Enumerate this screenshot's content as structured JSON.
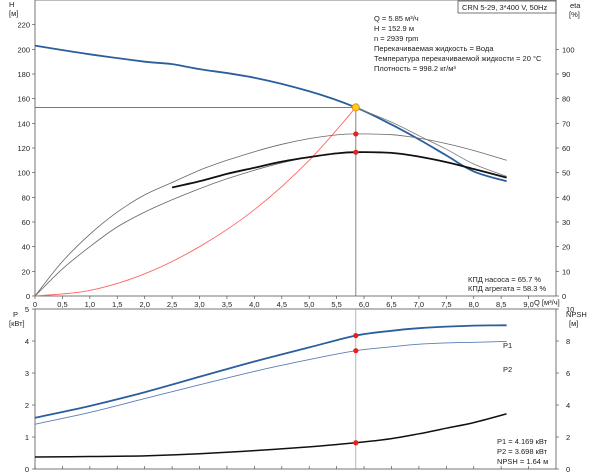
{
  "chart_data": [
    {
      "type": "line",
      "model_label": "CRN 5-29, 3*400 V, 50Hz",
      "xlabel": "Q [м³/ч]",
      "ylabel_left": [
        "H",
        "[м]"
      ],
      "ylabel_right": [
        "eta",
        "[%]"
      ],
      "xlim": [
        0,
        9.5
      ],
      "ylim_left": [
        0,
        240
      ],
      "ylim_right": [
        0,
        120
      ],
      "x_ticks": [
        "0",
        "0,5",
        "1,0",
        "1,5",
        "2,0",
        "2,5",
        "3,0",
        "3,5",
        "4,0",
        "4,5",
        "5,0",
        "5,5",
        "6,0",
        "6,5",
        "7,0",
        "7,5",
        "8,0",
        "8,5",
        "9,0"
      ],
      "y_ticks_left": [
        "0",
        "20",
        "40",
        "60",
        "80",
        "100",
        "120",
        "140",
        "160",
        "180",
        "200",
        "220"
      ],
      "y_ticks_right": [
        "0",
        "10",
        "20",
        "30",
        "40",
        "50",
        "60",
        "70",
        "80",
        "90",
        "100"
      ],
      "info_lines": [
        "Q = 5.85 м³/ч",
        "H = 152.9 м",
        "n = 2939 rpm",
        "Перекачиваемая жидкость = Вода",
        "Температура перекачиваемой жидкости = 20 °C",
        "Плотность = 998.2 кг/м³"
      ],
      "efficiency_notes": [
        "КПД насоса = 65.7 %",
        "КПД агрегата = 58.3 %"
      ],
      "duty_point": {
        "q": 5.85,
        "h": 152.9,
        "eta_pump": 65.7,
        "eta_unit": 58.3
      },
      "series": [
        {
          "role": "head",
          "color": "#2a5e9e",
          "x": [
            0,
            1,
            2,
            2.5,
            3,
            4,
            5,
            5.85,
            6.5,
            7,
            7.5,
            8,
            8.6
          ],
          "y": [
            203,
            196,
            190,
            188,
            184,
            177,
            166,
            152.9,
            139,
            127,
            114,
            101,
            93
          ]
        },
        {
          "role": "head-extension",
          "color": "#777777",
          "x": [
            5.85,
            6.5,
            7,
            7.5,
            8,
            8.6
          ],
          "y": [
            152.9,
            141,
            130,
            119,
            107,
            97
          ]
        },
        {
          "role": "system-curve",
          "color": "#ff6666",
          "x": [
            0,
            1,
            2,
            3,
            4,
            5,
            5.85
          ],
          "y": [
            0,
            4.5,
            18,
            40,
            70,
            110,
            152.9
          ]
        },
        {
          "role": "eta-pump",
          "color": "#666666",
          "x": [
            0,
            0.5,
            1,
            1.5,
            2,
            2.5,
            3,
            3.5,
            4,
            4.5,
            5,
            5.5,
            5.85,
            6.5,
            7,
            7.5,
            8,
            8.6
          ],
          "y": [
            0,
            14,
            25,
            34,
            41,
            46,
            51,
            55,
            58.5,
            61.5,
            63.8,
            65.3,
            65.7,
            65.4,
            64,
            61.8,
            59,
            55
          ]
        },
        {
          "role": "eta-unit",
          "color": "#666666",
          "x": [
            0,
            0.5,
            1,
            1.5,
            2,
            2.5,
            3,
            3.5,
            4,
            4.5,
            5,
            5.5,
            5.85,
            6.5,
            7,
            7.5,
            8,
            8.6
          ],
          "y": [
            0,
            11,
            20,
            28,
            34,
            39,
            43.5,
            47.5,
            51,
            54,
            56.3,
            57.8,
            58.3,
            58,
            56.5,
            54.3,
            51.5,
            48
          ]
        },
        {
          "role": "eta-unit-bold",
          "color": "#111111",
          "x": [
            2.5,
            3,
            3.5,
            4,
            4.5,
            5,
            5.5,
            5.85,
            6.5,
            7,
            7.5,
            8,
            8.6
          ],
          "y": [
            44,
            46.5,
            49.5,
            52,
            54.5,
            56.3,
            57.8,
            58.3,
            58,
            56.5,
            54.3,
            51.5,
            48
          ]
        }
      ]
    },
    {
      "type": "line",
      "ylabel_left": [
        "P",
        "[кВт]"
      ],
      "ylabel_right": [
        "NPSH",
        "[м]"
      ],
      "xlim": [
        0,
        9.5
      ],
      "ylim_left": [
        0,
        5
      ],
      "ylim_right": [
        0,
        10
      ],
      "y_ticks_left": [
        "0",
        "1",
        "2",
        "3",
        "4",
        "5"
      ],
      "y_ticks_right": [
        "0",
        "2",
        "4",
        "6",
        "8",
        "10"
      ],
      "series_labels": [
        "P1",
        "P2"
      ],
      "bottom_notes": [
        "P1 = 4.169 кВт",
        "P2 = 3.698 кВт",
        "NPSH = 1.64 м"
      ],
      "duty_point": {
        "q": 5.85,
        "p1": 4.169,
        "p2": 3.698,
        "npsh": 1.64
      },
      "series": [
        {
          "name": "P1",
          "color": "#2a5e9e",
          "x": [
            0,
            1,
            2,
            3,
            4,
            5,
            5.85,
            6.5,
            7,
            7.5,
            8,
            8.5,
            8.6
          ],
          "y": [
            1.6,
            1.97,
            2.4,
            2.88,
            3.36,
            3.8,
            4.169,
            4.32,
            4.4,
            4.45,
            4.48,
            4.49,
            4.49
          ]
        },
        {
          "name": "P2",
          "color": "#5a7fb8",
          "x": [
            0,
            1,
            2,
            3,
            4,
            5,
            5.85,
            6.5,
            7,
            7.5,
            8,
            8.5,
            8.6
          ],
          "y": [
            1.4,
            1.77,
            2.2,
            2.63,
            3.05,
            3.42,
            3.698,
            3.82,
            3.9,
            3.94,
            3.96,
            3.98,
            3.98
          ]
        },
        {
          "role": "npsh",
          "color": "#111111",
          "x": [
            0,
            1,
            2,
            3,
            4,
            5,
            5.85,
            6.5,
            7,
            7.5,
            8,
            8.6
          ],
          "y": [
            0.75,
            0.78,
            0.82,
            0.95,
            1.15,
            1.38,
            1.64,
            1.9,
            2.2,
            2.55,
            2.9,
            3.45
          ]
        }
      ]
    }
  ]
}
